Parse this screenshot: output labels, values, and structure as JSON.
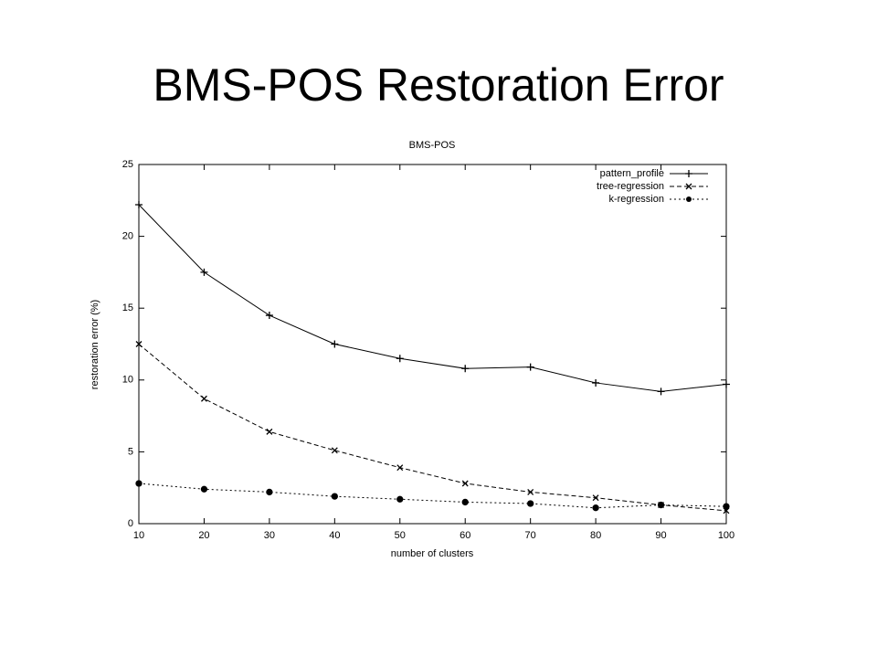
{
  "title": "BMS-POS Restoration Error",
  "chart_data": {
    "type": "line",
    "title": "BMS-POS",
    "x_label": "number of clusters",
    "y_label": "restoration error (%)",
    "x": [
      10,
      20,
      30,
      40,
      50,
      60,
      70,
      80,
      90,
      100
    ],
    "series": [
      {
        "name": "pattern_profile",
        "color": "#000000",
        "values": [
          22.2,
          17.5,
          14.5,
          12.5,
          11.5,
          10.8,
          10.9,
          9.8,
          9.2,
          9.7
        ]
      },
      {
        "name": "tree-regression",
        "color": "#000000",
        "values": [
          12.5,
          8.7,
          6.4,
          5.1,
          3.9,
          2.8,
          2.2,
          1.8,
          1.3,
          0.9
        ]
      },
      {
        "name": "k-regression",
        "color": "#000000",
        "values": [
          2.8,
          2.4,
          2.2,
          1.9,
          1.7,
          1.5,
          1.4,
          1.1,
          1.3,
          1.2
        ]
      }
    ],
    "xlim": [
      10,
      100
    ],
    "xticks": [
      10,
      20,
      30,
      40,
      50,
      60,
      70,
      80,
      90,
      100
    ],
    "ylim": [
      0,
      25
    ],
    "yticks": [
      0,
      5,
      10,
      15,
      20,
      25
    ],
    "legend": "upper right",
    "grid": false
  }
}
